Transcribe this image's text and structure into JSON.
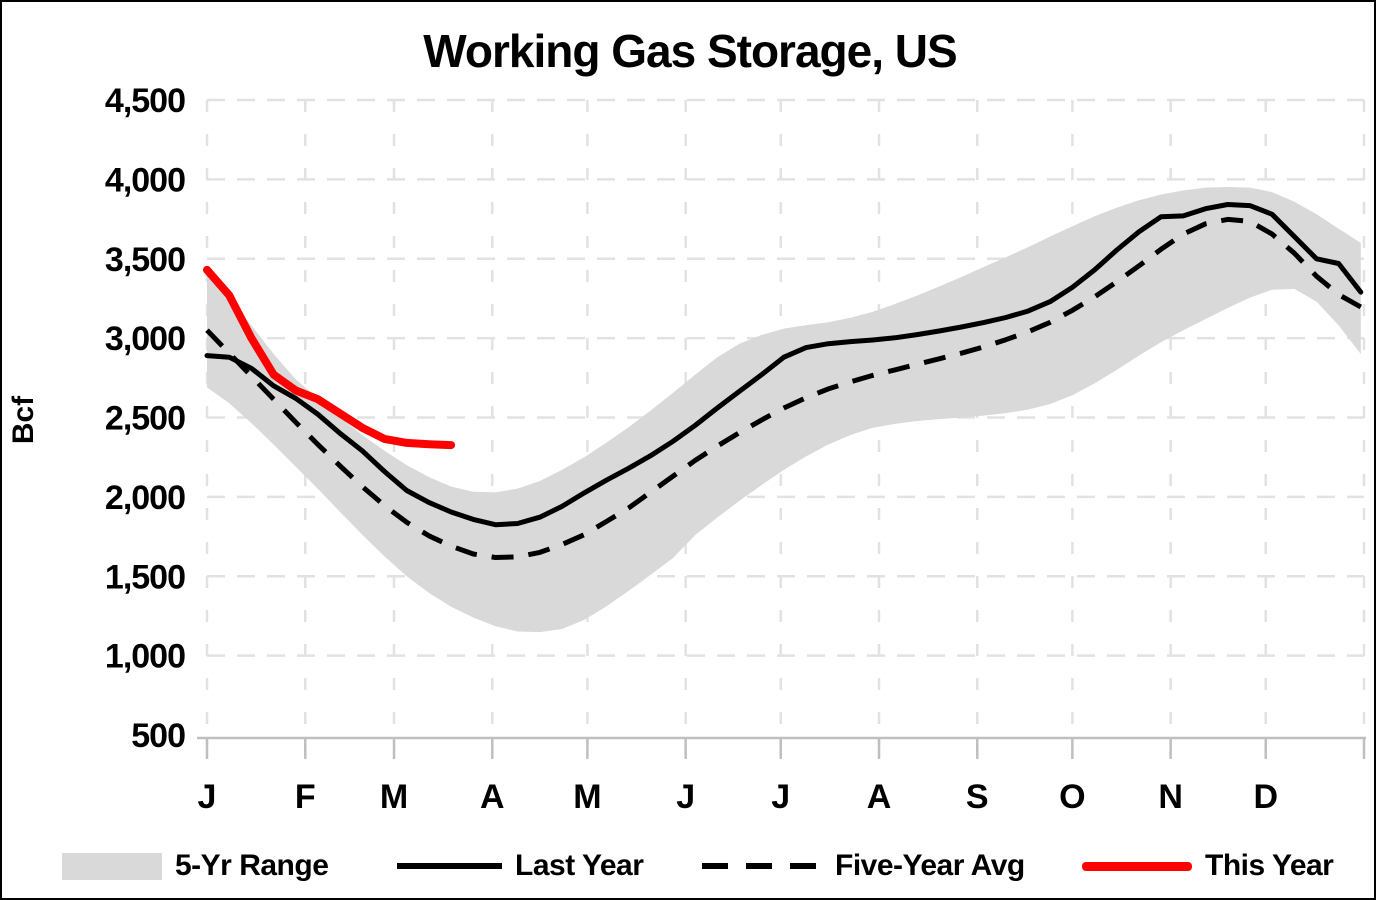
{
  "title": "Working Gas Storage, US",
  "y_axis": {
    "label": "Bcf",
    "tick_labels": [
      "4,500",
      "4,000",
      "3,500",
      "3,000",
      "2,500",
      "2,000",
      "1,500",
      "1,000",
      "500"
    ],
    "tick_values": [
      4500,
      4000,
      3500,
      3000,
      2500,
      2000,
      1500,
      1000,
      500
    ]
  },
  "x_axis": {
    "month_labels": [
      "J",
      "F",
      "M",
      "A",
      "M",
      "J",
      "J",
      "A",
      "S",
      "O",
      "N",
      "D"
    ]
  },
  "legend": {
    "items": [
      {
        "label": "5-Yr Range",
        "swatch": "band"
      },
      {
        "label": "Last Year",
        "swatch": "solid-line"
      },
      {
        "label": "Five-Year Avg",
        "swatch": "dashed-line"
      },
      {
        "label": "This Year",
        "swatch": "red-line"
      }
    ]
  },
  "colors": {
    "band": "#d9d9d9",
    "line_black": "#000000",
    "line_red": "#ff0000",
    "gridline": "#e2e2e2",
    "axis": "#bfbfbf"
  },
  "chart_data": {
    "type": "line",
    "title": "Working Gas Storage, US",
    "xlabel": "",
    "ylabel": "Bcf",
    "ylim": [
      500,
      4500
    ],
    "y_tick_step": 500,
    "x_unit": "week-of-year",
    "grid": "dashed, light gray, horizontal every 500 Bcf and vertical at month starts",
    "legend_position": "bottom",
    "band": {
      "name": "5-Yr Range",
      "color": "#d9d9d9",
      "top": [
        3390,
        3260,
        3080,
        2900,
        2740,
        2620,
        2500,
        2390,
        2290,
        2200,
        2125,
        2065,
        2032,
        2028,
        2052,
        2100,
        2170,
        2250,
        2342,
        2438,
        2545,
        2655,
        2770,
        2880,
        2965,
        3020,
        3060,
        3082,
        3100,
        3128,
        3165,
        3215,
        3268,
        3325,
        3385,
        3448,
        3510,
        3572,
        3640,
        3705,
        3768,
        3822,
        3868,
        3905,
        3930,
        3948,
        3952,
        3948,
        3920,
        3860,
        3780,
        3690,
        3600
      ],
      "bottom": [
        2690,
        2590,
        2465,
        2330,
        2190,
        2050,
        1905,
        1762,
        1625,
        1500,
        1395,
        1308,
        1240,
        1185,
        1152,
        1148,
        1168,
        1225,
        1310,
        1408,
        1510,
        1615,
        1760,
        1870,
        1975,
        2075,
        2170,
        2255,
        2330,
        2390,
        2435,
        2460,
        2478,
        2490,
        2500,
        2512,
        2528,
        2550,
        2585,
        2640,
        2715,
        2800,
        2890,
        2975,
        3050,
        3120,
        3190,
        3255,
        3305,
        3310,
        3230,
        3080,
        2900
      ]
    },
    "series": [
      {
        "name": "Last Year",
        "style": "solid",
        "color": "#000000",
        "width": 5,
        "values": [
          2890,
          2880,
          2810,
          2700,
          2620,
          2520,
          2400,
          2290,
          2160,
          2040,
          1965,
          1905,
          1858,
          1825,
          1832,
          1872,
          1940,
          2025,
          2105,
          2180,
          2260,
          2350,
          2450,
          2560,
          2665,
          2770,
          2880,
          2940,
          2965,
          2978,
          2988,
          3002,
          3022,
          3045,
          3070,
          3098,
          3130,
          3170,
          3230,
          3320,
          3430,
          3555,
          3670,
          3765,
          3770,
          3815,
          3842,
          3835,
          3780,
          3640,
          3500,
          3470,
          3290
        ]
      },
      {
        "name": "Five-Year Avg",
        "style": "dashed",
        "color": "#000000",
        "width": 5,
        "values": [
          3050,
          2905,
          2760,
          2615,
          2470,
          2330,
          2195,
          2065,
          1945,
          1840,
          1755,
          1690,
          1640,
          1618,
          1622,
          1650,
          1700,
          1762,
          1845,
          1930,
          2030,
          2130,
          2230,
          2320,
          2405,
          2485,
          2560,
          2625,
          2680,
          2725,
          2765,
          2800,
          2835,
          2870,
          2905,
          2945,
          2990,
          3040,
          3100,
          3175,
          3260,
          3355,
          3455,
          3560,
          3655,
          3720,
          3748,
          3735,
          3655,
          3535,
          3390,
          3275,
          3196
        ]
      },
      {
        "name": "This Year",
        "style": "solid",
        "color": "#ff0000",
        "width": 8,
        "values": [
          3430,
          3270,
          3000,
          2770,
          2670,
          2615,
          2525,
          2435,
          2365,
          2340,
          2332,
          2326
        ]
      }
    ]
  }
}
